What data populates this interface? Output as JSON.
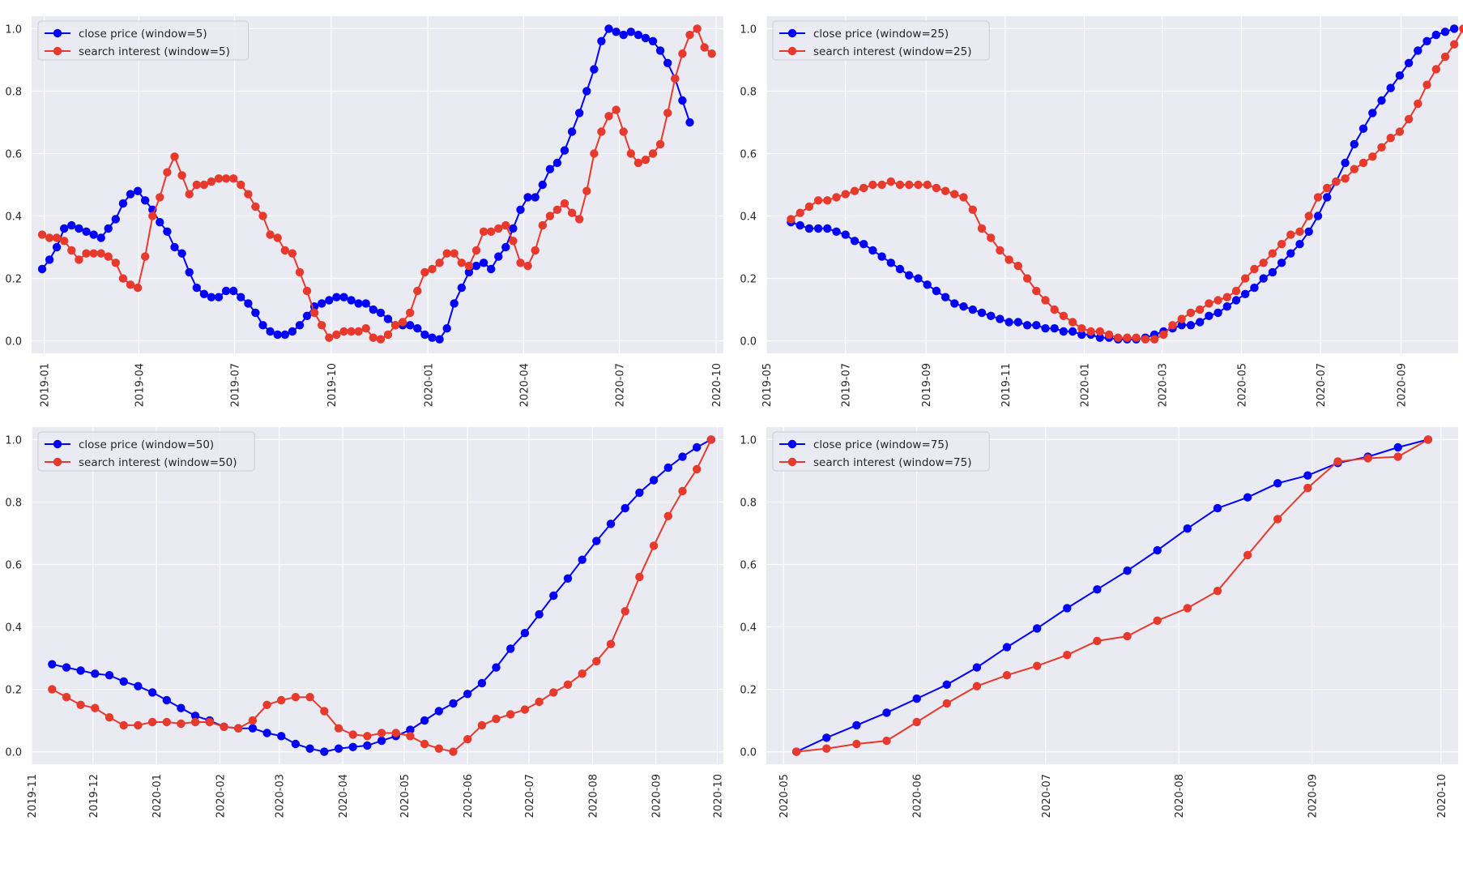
{
  "chart_data": [
    {
      "type": "line",
      "xlim": [
        "2018-12-20",
        "2020-10-08"
      ],
      "ylim": [
        -0.04,
        1.04
      ],
      "grid": true,
      "legend_position": "top-left",
      "yticks": [
        0.0,
        0.2,
        0.4,
        0.6,
        0.8,
        1.0
      ],
      "ytick_labels": [
        "0.0",
        "0.2",
        "0.4",
        "0.6",
        "0.8",
        "1.0"
      ],
      "xticks": [
        "2019-01-01",
        "2019-04-01",
        "2019-07-01",
        "2019-10-01",
        "2020-01-01",
        "2020-04-01",
        "2020-07-01",
        "2020-10-01"
      ],
      "xtick_labels": [
        "2019-01",
        "2019-04",
        "2019-07",
        "2019-10",
        "2020-01",
        "2020-04",
        "2020-07",
        "2020-10"
      ],
      "x_start": "2018-12-30",
      "x_step_days": 7,
      "series": [
        {
          "name": "close price (window=5)",
          "color": "#0000ff",
          "values": [
            0.23,
            0.26,
            0.3,
            0.36,
            0.37,
            0.36,
            0.35,
            0.34,
            0.33,
            0.36,
            0.39,
            0.44,
            0.47,
            0.48,
            0.45,
            0.42,
            0.38,
            0.35,
            0.3,
            0.28,
            0.22,
            0.17,
            0.15,
            0.14,
            0.14,
            0.16,
            0.16,
            0.14,
            0.12,
            0.09,
            0.05,
            0.03,
            0.02,
            0.02,
            0.03,
            0.05,
            0.08,
            0.11,
            0.12,
            0.13,
            0.14,
            0.14,
            0.13,
            0.12,
            0.12,
            0.1,
            0.09,
            0.07,
            0.05,
            0.05,
            0.05,
            0.04,
            0.02,
            0.01,
            0.005,
            0.04,
            0.12,
            0.17,
            0.22,
            0.24,
            0.25,
            0.23,
            0.27,
            0.3,
            0.36,
            0.42,
            0.46,
            0.46,
            0.5,
            0.55,
            0.57,
            0.61,
            0.67,
            0.73,
            0.8,
            0.87,
            0.96,
            1.0,
            0.99,
            0.98,
            0.99,
            0.98,
            0.97,
            0.96,
            0.93,
            0.89,
            0.84,
            0.77,
            0.7
          ]
        },
        {
          "name": "search interest (window=5)",
          "color": "#e8392d",
          "values": [
            0.34,
            0.33,
            0.33,
            0.32,
            0.29,
            0.26,
            0.28,
            0.28,
            0.28,
            0.27,
            0.25,
            0.2,
            0.18,
            0.17,
            0.27,
            0.4,
            0.46,
            0.54,
            0.59,
            0.53,
            0.47,
            0.5,
            0.5,
            0.51,
            0.52,
            0.52,
            0.52,
            0.5,
            0.47,
            0.43,
            0.4,
            0.34,
            0.33,
            0.29,
            0.28,
            0.22,
            0.16,
            0.09,
            0.05,
            0.01,
            0.02,
            0.03,
            0.03,
            0.03,
            0.04,
            0.01,
            0.005,
            0.02,
            0.05,
            0.06,
            0.09,
            0.16,
            0.22,
            0.23,
            0.25,
            0.28,
            0.28,
            0.25,
            0.24,
            0.29,
            0.35,
            0.35,
            0.36,
            0.37,
            0.32,
            0.25,
            0.24,
            0.29,
            0.37,
            0.4,
            0.42,
            0.44,
            0.41,
            0.39,
            0.48,
            0.6,
            0.67,
            0.72,
            0.74,
            0.67,
            0.6,
            0.57,
            0.58,
            0.6,
            0.63,
            0.73,
            0.84,
            0.92,
            0.98,
            1.0,
            0.94,
            0.92
          ]
        }
      ]
    },
    {
      "type": "line",
      "xlim": [
        "2019-05-01",
        "2020-10-15"
      ],
      "ylim": [
        -0.04,
        1.04
      ],
      "grid": true,
      "legend_position": "top-left",
      "yticks": [
        0.0,
        0.2,
        0.4,
        0.6,
        0.8,
        1.0
      ],
      "ytick_labels": [
        "0.0",
        "0.2",
        "0.4",
        "0.6",
        "0.8",
        "1.0"
      ],
      "xticks": [
        "2019-05-01",
        "2019-07-01",
        "2019-09-01",
        "2019-11-01",
        "2020-01-01",
        "2020-03-01",
        "2020-05-01",
        "2020-07-01",
        "2020-09-01"
      ],
      "xtick_labels": [
        "2019-05",
        "2019-07",
        "2019-09",
        "2019-11",
        "2020-01",
        "2020-03",
        "2020-05",
        "2020-07",
        "2020-09"
      ],
      "x_start": "2019-05-20",
      "x_step_days": 7,
      "series": [
        {
          "name": "close price (window=25)",
          "color": "#0000ff",
          "values": [
            0.38,
            0.37,
            0.36,
            0.36,
            0.36,
            0.35,
            0.34,
            0.32,
            0.31,
            0.29,
            0.27,
            0.25,
            0.23,
            0.21,
            0.2,
            0.18,
            0.16,
            0.14,
            0.12,
            0.11,
            0.1,
            0.09,
            0.08,
            0.07,
            0.06,
            0.06,
            0.05,
            0.05,
            0.04,
            0.04,
            0.03,
            0.03,
            0.02,
            0.02,
            0.01,
            0.01,
            0.005,
            0.005,
            0.005,
            0.01,
            0.02,
            0.03,
            0.04,
            0.05,
            0.05,
            0.06,
            0.08,
            0.09,
            0.11,
            0.13,
            0.15,
            0.17,
            0.2,
            0.22,
            0.25,
            0.28,
            0.31,
            0.35,
            0.4,
            0.46,
            0.51,
            0.57,
            0.63,
            0.68,
            0.73,
            0.77,
            0.81,
            0.85,
            0.89,
            0.93,
            0.96,
            0.98,
            0.99,
            1.0
          ]
        },
        {
          "name": "search interest (window=25)",
          "color": "#e8392d",
          "values": [
            0.39,
            0.41,
            0.43,
            0.45,
            0.45,
            0.46,
            0.47,
            0.48,
            0.49,
            0.5,
            0.5,
            0.51,
            0.5,
            0.5,
            0.5,
            0.5,
            0.49,
            0.48,
            0.47,
            0.46,
            0.42,
            0.36,
            0.33,
            0.29,
            0.26,
            0.24,
            0.2,
            0.16,
            0.13,
            0.1,
            0.08,
            0.06,
            0.04,
            0.03,
            0.03,
            0.02,
            0.01,
            0.01,
            0.01,
            0.005,
            0.005,
            0.02,
            0.05,
            0.07,
            0.09,
            0.1,
            0.12,
            0.13,
            0.14,
            0.16,
            0.2,
            0.23,
            0.25,
            0.28,
            0.31,
            0.34,
            0.35,
            0.4,
            0.46,
            0.49,
            0.51,
            0.52,
            0.55,
            0.57,
            0.59,
            0.62,
            0.65,
            0.67,
            0.71,
            0.76,
            0.82,
            0.87,
            0.91,
            0.95,
            1.0
          ]
        }
      ]
    },
    {
      "type": "line",
      "xlim": [
        "2019-11-01",
        "2020-10-04"
      ],
      "ylim": [
        -0.04,
        1.04
      ],
      "grid": true,
      "legend_position": "top-left",
      "yticks": [
        0.0,
        0.2,
        0.4,
        0.6,
        0.8,
        1.0
      ],
      "ytick_labels": [
        "0.0",
        "0.2",
        "0.4",
        "0.6",
        "0.8",
        "1.0"
      ],
      "xticks": [
        "2019-11-01",
        "2019-12-01",
        "2020-01-01",
        "2020-02-01",
        "2020-03-01",
        "2020-04-01",
        "2020-05-01",
        "2020-06-01",
        "2020-07-01",
        "2020-08-01",
        "2020-09-01",
        "2020-10-01"
      ],
      "xtick_labels": [
        "2019-11",
        "2019-12",
        "2020-01",
        "2020-02",
        "2020-03",
        "2020-04",
        "2020-05",
        "2020-06",
        "2020-07",
        "2020-08",
        "2020-09",
        "2020-10"
      ],
      "x_start": "2019-11-11",
      "x_step_days": 7,
      "series": [
        {
          "name": "close price (window=50)",
          "color": "#0000ff",
          "values": [
            0.28,
            0.27,
            0.26,
            0.25,
            0.245,
            0.225,
            0.21,
            0.19,
            0.165,
            0.14,
            0.115,
            0.1,
            0.08,
            0.075,
            0.075,
            0.06,
            0.05,
            0.025,
            0.01,
            0.0,
            0.01,
            0.015,
            0.02,
            0.035,
            0.05,
            0.07,
            0.1,
            0.13,
            0.155,
            0.185,
            0.22,
            0.27,
            0.33,
            0.38,
            0.44,
            0.5,
            0.555,
            0.615,
            0.675,
            0.73,
            0.78,
            0.83,
            0.87,
            0.91,
            0.945,
            0.975,
            1.0
          ]
        },
        {
          "name": "search interest (window=50)",
          "color": "#e8392d",
          "values": [
            0.2,
            0.175,
            0.15,
            0.14,
            0.11,
            0.085,
            0.085,
            0.095,
            0.095,
            0.09,
            0.095,
            0.095,
            0.08,
            0.075,
            0.1,
            0.15,
            0.165,
            0.175,
            0.175,
            0.13,
            0.075,
            0.055,
            0.05,
            0.06,
            0.06,
            0.05,
            0.025,
            0.01,
            0.0,
            0.04,
            0.085,
            0.105,
            0.12,
            0.135,
            0.16,
            0.19,
            0.215,
            0.25,
            0.29,
            0.345,
            0.45,
            0.56,
            0.66,
            0.755,
            0.835,
            0.905,
            1.0
          ]
        }
      ]
    },
    {
      "type": "line",
      "xlim": [
        "2020-04-27",
        "2020-10-05"
      ],
      "ylim": [
        -0.04,
        1.04
      ],
      "grid": true,
      "legend_position": "top-left",
      "yticks": [
        0.0,
        0.2,
        0.4,
        0.6,
        0.8,
        1.0
      ],
      "ytick_labels": [
        "0.0",
        "0.2",
        "0.4",
        "0.6",
        "0.8",
        "1.0"
      ],
      "xticks": [
        "2020-05-01",
        "2020-06-01",
        "2020-07-01",
        "2020-08-01",
        "2020-09-01",
        "2020-10-01"
      ],
      "xtick_labels": [
        "2020-05",
        "2020-06",
        "2020-07",
        "2020-08",
        "2020-09",
        "2020-10"
      ],
      "x_start": "2020-05-04",
      "x_step_days": 7,
      "series": [
        {
          "name": "close price (window=75)",
          "color": "#0000ff",
          "values": [
            0.0,
            0.045,
            0.085,
            0.125,
            0.17,
            0.215,
            0.27,
            0.335,
            0.395,
            0.46,
            0.52,
            0.58,
            0.645,
            0.715,
            0.78,
            0.815,
            0.86,
            0.885,
            0.925,
            0.945,
            0.975,
            1.0
          ]
        },
        {
          "name": "search interest (window=75)",
          "color": "#e8392d",
          "values": [
            0.0,
            0.01,
            0.025,
            0.035,
            0.095,
            0.155,
            0.21,
            0.245,
            0.275,
            0.31,
            0.355,
            0.37,
            0.42,
            0.46,
            0.515,
            0.63,
            0.745,
            0.845,
            0.93,
            0.94,
            0.945,
            1.0
          ]
        }
      ]
    }
  ]
}
